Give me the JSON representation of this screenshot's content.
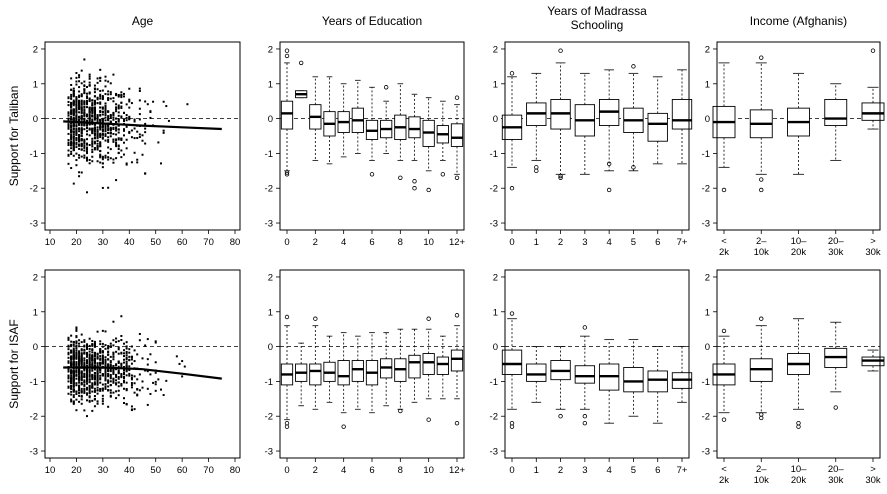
{
  "chart_data": {
    "type": "scatter+boxplot",
    "row_labels": [
      "Support for Taliban",
      "Support for ISAF"
    ],
    "columns": [
      {
        "title": "Age",
        "kind": "scatter",
        "x_ticks": [
          "10",
          "20",
          "30",
          "40",
          "50",
          "60",
          "70",
          "80"
        ],
        "xlim": [
          10,
          80
        ]
      },
      {
        "title": "Years of Education",
        "kind": "box",
        "x_ticks": [
          "0",
          "2",
          "4",
          "6",
          "8",
          "10",
          "12+"
        ]
      },
      {
        "title_lines": [
          "Years of Madrassa",
          "Schooling"
        ],
        "kind": "box",
        "x_ticks": [
          "0",
          "1",
          "2",
          "3",
          "4",
          "5",
          "6",
          "7+"
        ]
      },
      {
        "title": "Income (Afghanis)",
        "kind": "box",
        "x_ticks": [
          [
            "<",
            "2k"
          ],
          [
            "2–",
            "10k"
          ],
          [
            "10–",
            "20k"
          ],
          [
            "20–",
            "30k"
          ],
          [
            ">",
            "30k"
          ]
        ]
      }
    ],
    "y_ticks": [
      "-3",
      "-2",
      "-1",
      "0",
      "1",
      "2"
    ],
    "ylim": [
      -3.2,
      2.2
    ],
    "reference_line_y": 0,
    "rows": [
      {
        "age_trend": [
          [
            15,
            -0.08
          ],
          [
            30,
            -0.14
          ],
          [
            45,
            -0.2
          ],
          [
            60,
            -0.25
          ],
          [
            75,
            -0.3
          ]
        ],
        "education_boxes": [
          {
            "q1": -0.3,
            "median": 0.15,
            "q3": 0.5,
            "lo": -1.5,
            "hi": 1.6,
            "out": [
              1.95,
              1.8,
              -1.55,
              -1.6
            ]
          },
          {
            "q1": 0.6,
            "median": 0.7,
            "q3": 0.8,
            "lo": 0.6,
            "hi": 0.8,
            "out": [
              1.6
            ]
          },
          {
            "q1": -0.3,
            "median": 0.05,
            "q3": 0.4,
            "lo": -1.2,
            "hi": 1.2,
            "out": []
          },
          {
            "q1": -0.5,
            "median": -0.15,
            "q3": 0.2,
            "lo": -1.3,
            "hi": 1.2,
            "out": []
          },
          {
            "q1": -0.4,
            "median": -0.1,
            "q3": 0.2,
            "lo": -1.1,
            "hi": 1.0,
            "out": []
          },
          {
            "q1": -0.4,
            "median": -0.05,
            "q3": 0.3,
            "lo": -1.0,
            "hi": 1.1,
            "out": []
          },
          {
            "q1": -0.6,
            "median": -0.35,
            "q3": -0.05,
            "lo": -1.2,
            "hi": 0.9,
            "out": [
              -1.6
            ]
          },
          {
            "q1": -0.55,
            "median": -0.3,
            "q3": -0.05,
            "lo": -1.0,
            "hi": 0.5,
            "out": [
              0.9
            ]
          },
          {
            "q1": -0.6,
            "median": -0.25,
            "q3": 0.1,
            "lo": -1.2,
            "hi": 1.0,
            "out": [
              -1.7
            ]
          },
          {
            "q1": -0.55,
            "median": -0.3,
            "q3": 0.05,
            "lo": -1.2,
            "hi": 0.7,
            "out": [
              -1.8,
              -2.0
            ]
          },
          {
            "q1": -0.8,
            "median": -0.4,
            "q3": -0.05,
            "lo": -1.5,
            "hi": 0.6,
            "out": [
              -2.05
            ]
          },
          {
            "q1": -0.7,
            "median": -0.45,
            "q3": -0.2,
            "lo": -1.2,
            "hi": 0.5,
            "out": [
              -1.6
            ]
          },
          {
            "q1": -0.8,
            "median": -0.55,
            "q3": -0.15,
            "lo": -1.6,
            "hi": 0.4,
            "out": [
              -1.7,
              0.6
            ]
          }
        ],
        "madrassa_boxes": [
          {
            "q1": -0.6,
            "median": -0.25,
            "q3": 0.1,
            "lo": -1.4,
            "hi": 1.2,
            "out": [
              1.3,
              -2.0
            ]
          },
          {
            "q1": -0.2,
            "median": 0.15,
            "q3": 0.45,
            "lo": -1.2,
            "hi": 1.3,
            "out": [
              -1.4,
              -1.5
            ]
          },
          {
            "q1": -0.3,
            "median": 0.15,
            "q3": 0.55,
            "lo": -1.6,
            "hi": 1.6,
            "out": [
              1.95,
              -1.65,
              -1.7
            ]
          },
          {
            "q1": -0.5,
            "median": -0.05,
            "q3": 0.4,
            "lo": -1.6,
            "hi": 1.3,
            "out": []
          },
          {
            "q1": -0.2,
            "median": 0.2,
            "q3": 0.55,
            "lo": -1.5,
            "hi": 1.4,
            "out": [
              -1.3,
              -2.05
            ]
          },
          {
            "q1": -0.4,
            "median": -0.05,
            "q3": 0.3,
            "lo": -1.5,
            "hi": 1.3,
            "out": [
              1.5,
              -1.4
            ]
          },
          {
            "q1": -0.65,
            "median": -0.15,
            "q3": 0.15,
            "lo": -1.3,
            "hi": 1.2,
            "out": []
          },
          {
            "q1": -0.3,
            "median": -0.05,
            "q3": 0.55,
            "lo": -1.3,
            "hi": 1.4,
            "out": []
          }
        ],
        "income_boxes": [
          {
            "q1": -0.55,
            "median": -0.1,
            "q3": 0.35,
            "lo": -1.4,
            "hi": 1.6,
            "out": [
              -2.05
            ]
          },
          {
            "q1": -0.55,
            "median": -0.15,
            "q3": 0.25,
            "lo": -1.6,
            "hi": 1.6,
            "out": [
              1.75,
              -1.75,
              -2.05
            ]
          },
          {
            "q1": -0.5,
            "median": -0.1,
            "q3": 0.3,
            "lo": -1.6,
            "hi": 1.3,
            "out": []
          },
          {
            "q1": -0.2,
            "median": 0.0,
            "q3": 0.55,
            "lo": -1.2,
            "hi": 1.0,
            "out": []
          },
          {
            "q1": -0.05,
            "median": 0.15,
            "q3": 0.45,
            "lo": -0.3,
            "hi": 0.9,
            "out": [
              1.95
            ]
          }
        ]
      },
      {
        "age_trend": [
          [
            15,
            -0.6
          ],
          [
            30,
            -0.6
          ],
          [
            45,
            -0.65
          ],
          [
            60,
            -0.78
          ],
          [
            75,
            -0.92
          ]
        ],
        "education_boxes": [
          {
            "q1": -1.1,
            "median": -0.8,
            "q3": -0.5,
            "lo": -2.1,
            "hi": 0.6,
            "out": [
              0.85,
              -2.2,
              -2.3
            ]
          },
          {
            "q1": -1.0,
            "median": -0.75,
            "q3": -0.5,
            "lo": -1.7,
            "hi": 0.1,
            "out": []
          },
          {
            "q1": -1.1,
            "median": -0.7,
            "q3": -0.5,
            "lo": -1.8,
            "hi": 0.6,
            "out": [
              0.8
            ]
          },
          {
            "q1": -1.0,
            "median": -0.75,
            "q3": -0.45,
            "lo": -1.6,
            "hi": 0.3,
            "out": []
          },
          {
            "q1": -1.1,
            "median": -0.85,
            "q3": -0.4,
            "lo": -1.9,
            "hi": 0.4,
            "out": [
              -2.3
            ]
          },
          {
            "q1": -1.0,
            "median": -0.65,
            "q3": -0.4,
            "lo": -1.8,
            "hi": 0.3,
            "out": []
          },
          {
            "q1": -1.1,
            "median": -0.75,
            "q3": -0.4,
            "lo": -1.9,
            "hi": 0.4,
            "out": []
          },
          {
            "q1": -0.9,
            "median": -0.6,
            "q3": -0.35,
            "lo": -1.7,
            "hi": 0.4,
            "out": []
          },
          {
            "q1": -1.0,
            "median": -0.65,
            "q3": -0.35,
            "lo": -1.8,
            "hi": 0.5,
            "out": [
              -1.85
            ]
          },
          {
            "q1": -0.9,
            "median": -0.45,
            "q3": -0.25,
            "lo": -1.6,
            "hi": 0.5,
            "out": []
          },
          {
            "q1": -0.8,
            "median": -0.45,
            "q3": -0.2,
            "lo": -1.5,
            "hi": 0.5,
            "out": [
              0.8,
              -2.1
            ]
          },
          {
            "q1": -0.8,
            "median": -0.5,
            "q3": -0.3,
            "lo": -1.5,
            "hi": 0.3,
            "out": []
          },
          {
            "q1": -0.7,
            "median": -0.35,
            "q3": -0.1,
            "lo": -1.5,
            "hi": 0.6,
            "out": [
              0.9,
              -2.2
            ]
          }
        ],
        "madrassa_boxes": [
          {
            "q1": -0.8,
            "median": -0.5,
            "q3": -0.1,
            "lo": -1.8,
            "hi": 0.8,
            "out": [
              0.95,
              -2.2,
              -2.3
            ]
          },
          {
            "q1": -1.0,
            "median": -0.8,
            "q3": -0.5,
            "lo": -1.6,
            "hi": 0.0,
            "out": []
          },
          {
            "q1": -0.95,
            "median": -0.7,
            "q3": -0.4,
            "lo": -1.8,
            "hi": 0.0,
            "out": [
              -2.0
            ]
          },
          {
            "q1": -1.05,
            "median": -0.85,
            "q3": -0.55,
            "lo": -1.8,
            "hi": 0.3,
            "out": [
              0.55,
              -2.0,
              -2.2
            ]
          },
          {
            "q1": -1.25,
            "median": -0.85,
            "q3": -0.5,
            "lo": -2.2,
            "hi": 0.2,
            "out": []
          },
          {
            "q1": -1.3,
            "median": -1.0,
            "q3": -0.6,
            "lo": -2.0,
            "hi": 0.2,
            "out": []
          },
          {
            "q1": -1.3,
            "median": -0.95,
            "q3": -0.7,
            "lo": -2.2,
            "hi": 0.0,
            "out": []
          },
          {
            "q1": -1.2,
            "median": -0.95,
            "q3": -0.75,
            "lo": -1.6,
            "hi": 0.0,
            "out": []
          }
        ],
        "income_boxes": [
          {
            "q1": -1.1,
            "median": -0.8,
            "q3": -0.5,
            "lo": -1.9,
            "hi": 0.3,
            "out": [
              0.45,
              -2.1
            ]
          },
          {
            "q1": -1.0,
            "median": -0.65,
            "q3": -0.35,
            "lo": -1.9,
            "hi": 0.6,
            "out": [
              0.8,
              -1.95,
              -2.05
            ]
          },
          {
            "q1": -0.8,
            "median": -0.5,
            "q3": -0.2,
            "lo": -1.8,
            "hi": 0.8,
            "out": [
              -2.2,
              -2.3
            ]
          },
          {
            "q1": -0.6,
            "median": -0.3,
            "q3": -0.05,
            "lo": -1.3,
            "hi": 0.7,
            "out": [
              -1.75
            ]
          },
          {
            "q1": -0.55,
            "median": -0.4,
            "q3": -0.3,
            "lo": -0.7,
            "hi": -0.1,
            "out": []
          }
        ]
      }
    ]
  }
}
